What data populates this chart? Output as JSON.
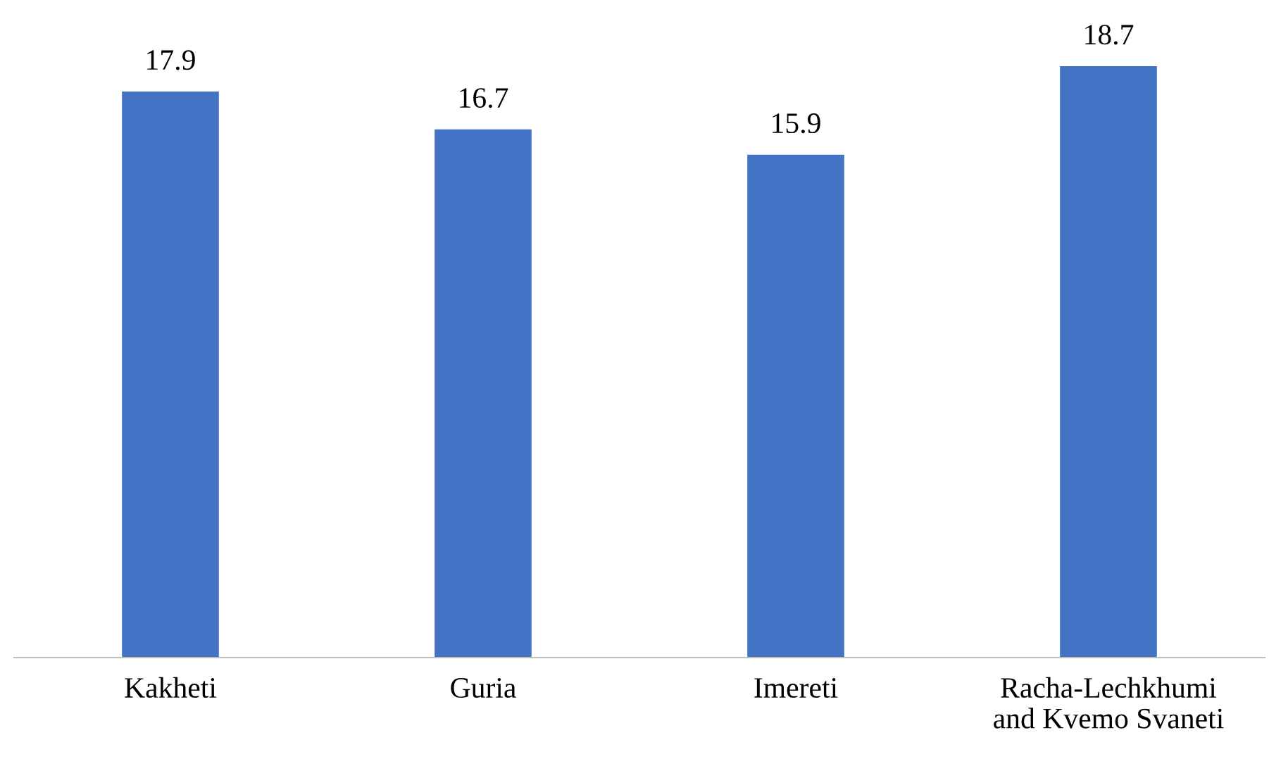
{
  "chart_data": {
    "type": "bar",
    "categories": [
      "Kakheti",
      "Guria",
      "Imereti",
      "Racha-Lechkhumi\nand Kvemo Svaneti"
    ],
    "values": [
      17.9,
      16.7,
      15.9,
      18.7
    ],
    "color": "#4472c4",
    "data_labels": true,
    "grid": false,
    "legend": false
  }
}
